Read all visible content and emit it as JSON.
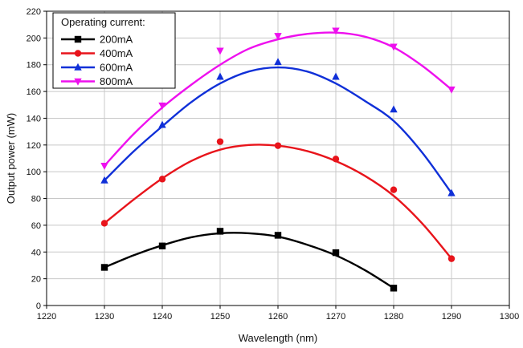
{
  "chart_data": {
    "type": "scatter",
    "xlabel": "Wavelength (nm)",
    "ylabel": "Output power (mW)",
    "xlim": [
      1220,
      1300
    ],
    "ylim": [
      0,
      220
    ],
    "x_ticks": [
      1220,
      1230,
      1240,
      1250,
      1260,
      1270,
      1280,
      1290,
      1300
    ],
    "y_ticks": [
      0,
      20,
      40,
      60,
      80,
      100,
      120,
      140,
      160,
      180,
      200,
      220
    ],
    "grid": true,
    "legend_title": "Operating current:",
    "legend_position": "top-left",
    "series": [
      {
        "name": "200mA",
        "color": "#000000",
        "marker": "square",
        "points": [
          [
            1230,
            28.5
          ],
          [
            1240,
            44.5
          ],
          [
            1250,
            55.5
          ],
          [
            1260,
            52.5
          ],
          [
            1270,
            39.5
          ],
          [
            1280,
            13
          ]
        ],
        "fit": [
          [
            1230,
            28.5
          ],
          [
            1235,
            37.5
          ],
          [
            1240,
            45
          ],
          [
            1245,
            51
          ],
          [
            1250,
            54
          ],
          [
            1255,
            54
          ],
          [
            1260,
            51.5
          ],
          [
            1265,
            45.5
          ],
          [
            1270,
            37.5
          ],
          [
            1275,
            26.5
          ],
          [
            1280,
            13
          ]
        ]
      },
      {
        "name": "400mA",
        "color": "#e8141b",
        "marker": "circle",
        "points": [
          [
            1230,
            61.5
          ],
          [
            1240,
            94.5
          ],
          [
            1250,
            122.5
          ],
          [
            1260,
            119.5
          ],
          [
            1270,
            109.5
          ],
          [
            1280,
            86.5
          ],
          [
            1290,
            35
          ]
        ],
        "fit": [
          [
            1230,
            61.5
          ],
          [
            1235,
            79
          ],
          [
            1240,
            95
          ],
          [
            1245,
            108
          ],
          [
            1250,
            116.5
          ],
          [
            1255,
            120
          ],
          [
            1260,
            119.5
          ],
          [
            1265,
            115.5
          ],
          [
            1270,
            108
          ],
          [
            1275,
            97
          ],
          [
            1280,
            82
          ],
          [
            1285,
            61
          ],
          [
            1290,
            35
          ]
        ]
      },
      {
        "name": "600mA",
        "color": "#1030d8",
        "marker": "triangle-up",
        "points": [
          [
            1230,
            93.5
          ],
          [
            1240,
            135
          ],
          [
            1250,
            171
          ],
          [
            1260,
            182
          ],
          [
            1270,
            171
          ],
          [
            1280,
            146.5
          ],
          [
            1290,
            84
          ]
        ],
        "fit": [
          [
            1230,
            93.5
          ],
          [
            1235,
            115
          ],
          [
            1240,
            134
          ],
          [
            1245,
            152
          ],
          [
            1250,
            166
          ],
          [
            1255,
            175
          ],
          [
            1260,
            178
          ],
          [
            1265,
            175
          ],
          [
            1270,
            166
          ],
          [
            1275,
            153
          ],
          [
            1280,
            138
          ],
          [
            1285,
            114
          ],
          [
            1290,
            84
          ]
        ]
      },
      {
        "name": "800mA",
        "color": "#ee10ee",
        "marker": "triangle-down",
        "points": [
          [
            1230,
            104.5
          ],
          [
            1240,
            149.5
          ],
          [
            1250,
            190.5
          ],
          [
            1260,
            201.5
          ],
          [
            1270,
            205.5
          ],
          [
            1280,
            193.5
          ],
          [
            1290,
            161.5
          ]
        ],
        "fit": [
          [
            1230,
            104.5
          ],
          [
            1235,
            128
          ],
          [
            1240,
            148
          ],
          [
            1245,
            165
          ],
          [
            1250,
            180
          ],
          [
            1255,
            192
          ],
          [
            1260,
            199
          ],
          [
            1265,
            203
          ],
          [
            1270,
            204
          ],
          [
            1275,
            201
          ],
          [
            1280,
            193
          ],
          [
            1285,
            179
          ],
          [
            1290,
            161.5
          ]
        ]
      }
    ]
  }
}
